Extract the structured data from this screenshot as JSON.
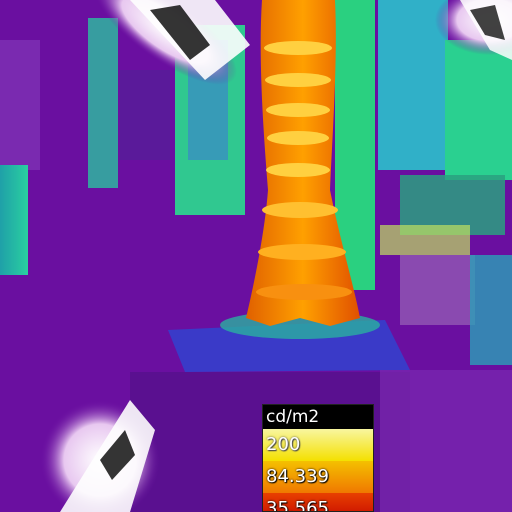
{
  "legend": {
    "unit": "cd/m2",
    "values": [
      "200",
      "84.339",
      "35.565"
    ]
  },
  "colors": {
    "background": "#6a0fa0",
    "low": "#3a2ad0",
    "mid": "#2ad07a",
    "high": "#f0a000",
    "peak": "#ffef60"
  }
}
